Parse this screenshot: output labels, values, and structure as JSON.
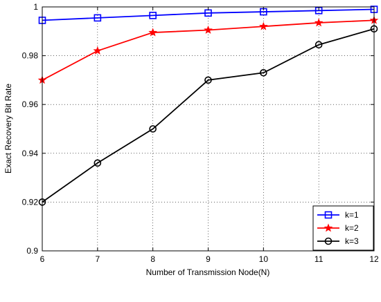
{
  "chart_data": {
    "type": "line",
    "title": "",
    "xlabel": "Number of Transmission Node(N)",
    "ylabel": "Exact Recovery Bit Rate",
    "x": [
      6,
      7,
      8,
      9,
      10,
      11,
      12
    ],
    "xlim": [
      6,
      12
    ],
    "ylim": [
      0.9,
      1.0
    ],
    "xticks": [
      "6",
      "7",
      "8",
      "9",
      "10",
      "11",
      "12"
    ],
    "yticks": [
      "0.9",
      "0.92",
      "0.94",
      "0.96",
      "0.98",
      "1"
    ],
    "grid": true,
    "legend_position": "bottom-right",
    "series": [
      {
        "name": "k=1",
        "color": "#0000ff",
        "marker": "square",
        "values": [
          0.9945,
          0.9955,
          0.9965,
          0.9975,
          0.998,
          0.9985,
          0.999
        ]
      },
      {
        "name": "k=2",
        "color": "#ff0000",
        "marker": "star",
        "values": [
          0.97,
          0.982,
          0.9895,
          0.9905,
          0.992,
          0.9935,
          0.9945
        ]
      },
      {
        "name": "k=3",
        "color": "#000000",
        "marker": "circle",
        "values": [
          0.92,
          0.936,
          0.95,
          0.97,
          0.973,
          0.9845,
          0.991
        ]
      }
    ]
  }
}
